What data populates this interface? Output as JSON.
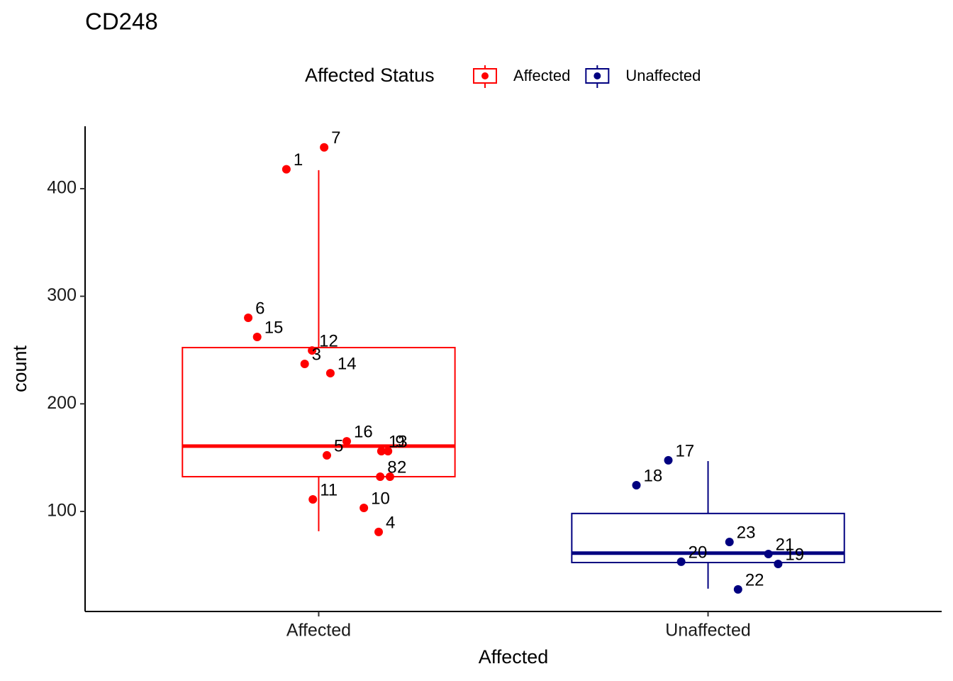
{
  "chart_data": {
    "type": "box",
    "title": "CD248",
    "x_label": "Affected",
    "y_label": "count",
    "legend_title": "Affected Status",
    "legend_position": "top",
    "categories": [
      "Affected",
      "Unaffected"
    ],
    "xlim": [
      0.4,
      2.6
    ],
    "ylim": [
      7,
      458
    ],
    "yticks": [
      100,
      200,
      300,
      400
    ],
    "series": [
      {
        "name": "Affected",
        "color": "#ff0000",
        "whisker_low": 81.6,
        "q1": 132.3,
        "median": 160.7,
        "q3": 252.3,
        "whisker_high": 417.2,
        "points": {
          "x": [
            1.014,
            0.917,
            0.819,
            0.842,
            0.983,
            0.964,
            1.03,
            1.072,
            1.161,
            1.178,
            1.021,
            1.158,
            1.183,
            0.985,
            1.116,
            1.154
          ],
          "values": [
            438.4,
            418,
            280,
            262.2,
            249.6,
            237.1,
            228.5,
            165.2,
            156,
            156,
            152.1,
            132.3,
            132.3,
            111.2,
            103.3,
            80.9
          ],
          "labels": [
            "7",
            "1",
            "6",
            "15",
            "12",
            "3",
            "14",
            "16",
            "13",
            "9",
            "5",
            "8",
            "2",
            "11",
            "10",
            "4"
          ]
        }
      },
      {
        "name": "Unaffected",
        "color": "#000080",
        "whisker_low": 28.2,
        "q1": 52.5,
        "median": 61.2,
        "q3": 98.1,
        "whisker_high": 146.8,
        "points": {
          "x": [
            1.898,
            1.816,
            2.055,
            2.155,
            2.18,
            1.931,
            2.077
          ],
          "values": [
            147.5,
            124.4,
            71.6,
            60.4,
            51.2,
            53.2,
            27.5
          ],
          "labels": [
            "17",
            "18",
            "23",
            "21",
            "19",
            "20",
            "22"
          ]
        }
      }
    ]
  }
}
